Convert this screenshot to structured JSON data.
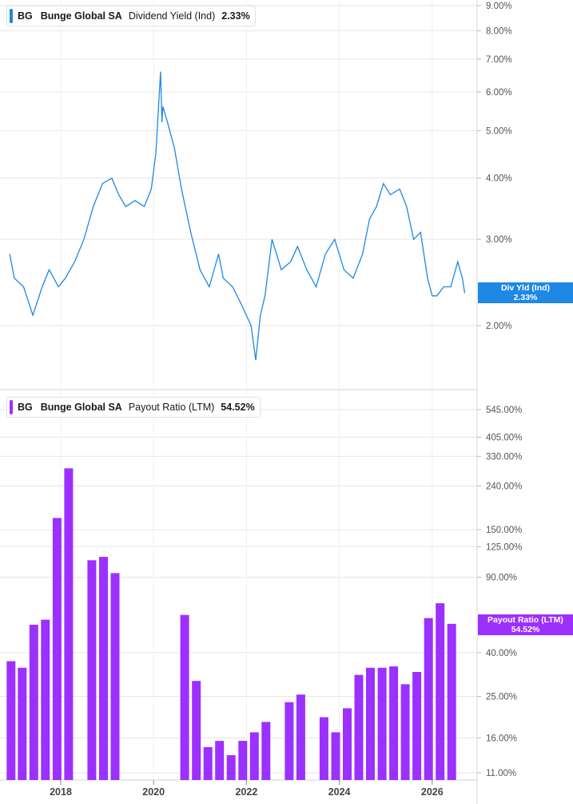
{
  "colors": {
    "yield_line": "#1e88e5",
    "payout_bar": "#9b30ff",
    "grid": "#e6e6e6",
    "axis_text": "#555555"
  },
  "legends": {
    "yield": {
      "ticker": "BG",
      "name": "Bunge Global SA",
      "metric": "Dividend Yield (Ind)",
      "value": "2.33%"
    },
    "payout": {
      "ticker": "BG",
      "name": "Bunge Global SA",
      "metric": "Payout Ratio (LTM)",
      "value": "54.52%"
    }
  },
  "tags": {
    "yield": {
      "label": "Div Yld (Ind)",
      "value": "2.33%"
    },
    "payout": {
      "label": "Payout Ratio (LTM)",
      "value": "54.52%"
    }
  },
  "chart_data": [
    {
      "type": "line",
      "title": "Dividend Yield (Ind)",
      "series": [
        {
          "name": "Dividend Yield (Ind)"
        }
      ],
      "y_scale": "log",
      "y_ticks": [
        "2.00%",
        "3.00%",
        "4.00%",
        "5.00%",
        "6.00%",
        "7.00%",
        "8.00%",
        "9.00%"
      ],
      "last_value": "2.33%",
      "x": [
        2016.9,
        2017.0,
        2017.2,
        2017.4,
        2017.6,
        2017.75,
        2017.95,
        2018.1,
        2018.3,
        2018.5,
        2018.7,
        2018.9,
        2019.1,
        2019.25,
        2019.4,
        2019.6,
        2019.8,
        2019.95,
        2020.05,
        2020.15,
        2020.18,
        2020.2,
        2020.3,
        2020.45,
        2020.6,
        2020.8,
        2021.0,
        2021.2,
        2021.4,
        2021.5,
        2021.7,
        2021.9,
        2022.1,
        2022.2,
        2022.3,
        2022.4,
        2022.55,
        2022.75,
        2022.95,
        2023.1,
        2023.3,
        2023.5,
        2023.7,
        2023.9,
        2024.1,
        2024.3,
        2024.5,
        2024.65,
        2024.8,
        2024.95,
        2025.1,
        2025.3,
        2025.45,
        2025.6,
        2025.75,
        2025.9,
        2026.0,
        2026.1,
        2026.25,
        2026.4,
        2026.55,
        2026.65,
        2026.7
      ],
      "y": [
        2.8,
        2.5,
        2.4,
        2.1,
        2.4,
        2.6,
        2.4,
        2.5,
        2.7,
        3.0,
        3.5,
        3.9,
        4.0,
        3.7,
        3.5,
        3.6,
        3.5,
        3.8,
        4.5,
        6.6,
        5.2,
        5.6,
        5.2,
        4.6,
        3.8,
        3.1,
        2.6,
        2.4,
        2.8,
        2.5,
        2.4,
        2.2,
        2.0,
        1.7,
        2.1,
        2.3,
        3.0,
        2.6,
        2.7,
        2.9,
        2.6,
        2.4,
        2.8,
        3.0,
        2.6,
        2.5,
        2.8,
        3.3,
        3.5,
        3.9,
        3.7,
        3.8,
        3.5,
        3.0,
        3.1,
        2.5,
        2.3,
        2.3,
        2.4,
        2.4,
        2.7,
        2.5,
        2.33
      ],
      "xlim": [
        2016.9,
        2027.3
      ]
    },
    {
      "type": "bar",
      "title": "Payout Ratio (LTM)",
      "series": [
        {
          "name": "Payout Ratio (LTM)"
        }
      ],
      "y_scale": "log",
      "y_ticks": [
        "11.00%",
        "16.00%",
        "25.00%",
        "40.00%",
        "90.00%",
        "125.00%",
        "150.00%",
        "240.00%",
        "330.00%",
        "405.00%",
        "545.00%"
      ],
      "last_value": "54.52%",
      "x_ticks": [
        "2018",
        "2020",
        "2022",
        "2024",
        "2026"
      ],
      "x": [
        2016.93,
        2017.17,
        2017.42,
        2017.67,
        2017.92,
        2018.17,
        2018.67,
        2018.92,
        2019.17,
        2020.67,
        2020.92,
        2021.17,
        2021.42,
        2021.67,
        2021.92,
        2022.17,
        2022.42,
        2022.92,
        2023.17,
        2023.67,
        2023.92,
        2024.17,
        2024.42,
        2024.67,
        2024.92,
        2025.17,
        2025.42,
        2025.67,
        2025.92,
        2026.17,
        2026.42
      ],
      "values": [
        36.5,
        34.0,
        54.0,
        57.0,
        170.0,
        290.0,
        108.0,
        112.0,
        94.0,
        60.0,
        29.5,
        14.5,
        15.5,
        13.3,
        15.5,
        17.0,
        19.0,
        23.5,
        25.5,
        20.0,
        17.0,
        22.0,
        31.5,
        34.0,
        34.0,
        34.5,
        28.5,
        32.5,
        58.0,
        68.0,
        54.52
      ],
      "xlim": [
        2016.9,
        2027.3
      ]
    }
  ]
}
